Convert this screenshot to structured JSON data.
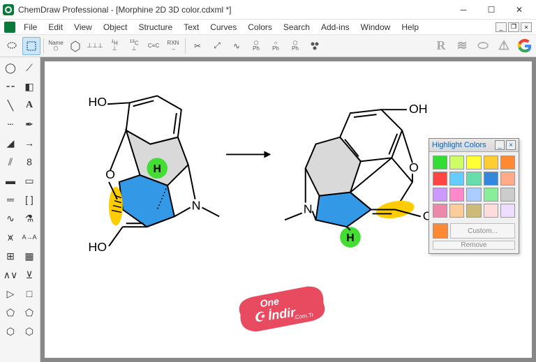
{
  "title": "ChemDraw Professional - [Morphine 2D 3D color.cdxml *]",
  "menus": [
    "File",
    "Edit",
    "View",
    "Object",
    "Structure",
    "Text",
    "Curves",
    "Colors",
    "Search",
    "Add-ins",
    "Window",
    "Help"
  ],
  "highlight_panel": {
    "title": "Highlight Colors",
    "swatches": [
      "#33dd33",
      "#ccff66",
      "#ffff33",
      "#ffcc33",
      "#ff8833",
      "#ff4444",
      "#66ccff",
      "#66ddaa",
      "#3388dd",
      "#ffaa88",
      "#cc99ff",
      "#ff88cc",
      "#aaccff",
      "#88ee99",
      "#cccccc",
      "#ee88aa",
      "#ffcc99",
      "#ccbb77",
      "#ffdddd",
      "#eeddff"
    ],
    "selected": "#ff8833",
    "custom_label": "Custom...",
    "remove_label": "Remove"
  },
  "molecule_labels": {
    "HO": "HO",
    "OH": "OH",
    "H": "H",
    "N": "N",
    "O": "O"
  },
  "watermark": {
    "line1": "One",
    "line2": "İndir",
    "suffix": ".Com.Tr"
  },
  "colors": {
    "blue_fill": "#3399e6",
    "gray_fill": "#d9d9d9",
    "green": "#44dd33",
    "yellow": "#ffcc00",
    "wm_bg": "#e84a5f"
  }
}
